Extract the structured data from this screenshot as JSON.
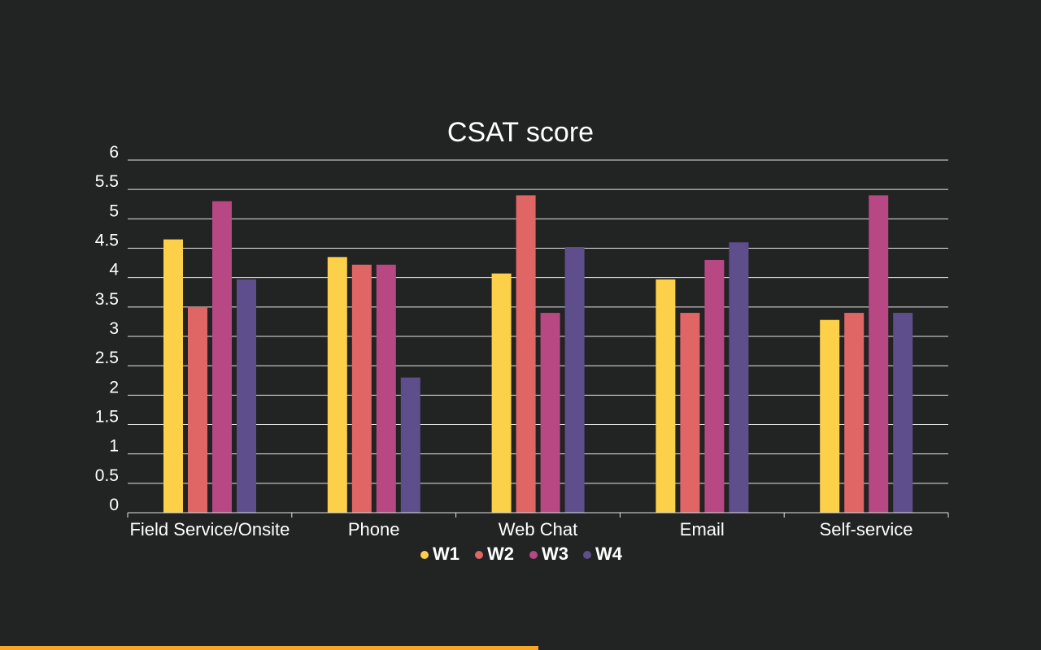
{
  "chart_data": {
    "type": "bar",
    "title": "CSAT score",
    "categories": [
      "Field Service/Onsite",
      "Phone",
      "Web Chat",
      "Email",
      "Self-service"
    ],
    "series": [
      {
        "name": "W1",
        "color": "#fdd049",
        "values": [
          4.65,
          4.35,
          4.07,
          3.97,
          3.28
        ]
      },
      {
        "name": "W2",
        "color": "#e06565",
        "values": [
          3.5,
          4.22,
          5.4,
          3.4,
          3.4
        ]
      },
      {
        "name": "W3",
        "color": "#b74883",
        "values": [
          5.3,
          4.22,
          3.4,
          4.3,
          5.4
        ]
      },
      {
        "name": "W4",
        "color": "#5f4e8c",
        "values": [
          3.97,
          2.3,
          4.52,
          4.6,
          3.4
        ]
      }
    ],
    "yticks": [
      "0",
      "0.5",
      "1",
      "1.5",
      "2",
      "2.5",
      "3",
      "3.5",
      "4",
      "4.5",
      "5",
      "5.5",
      "6"
    ],
    "ylim": [
      0,
      6
    ],
    "grid": true,
    "legend_position": "bottom"
  },
  "progress": {
    "fraction": 0.517,
    "color": "#f5a623"
  }
}
